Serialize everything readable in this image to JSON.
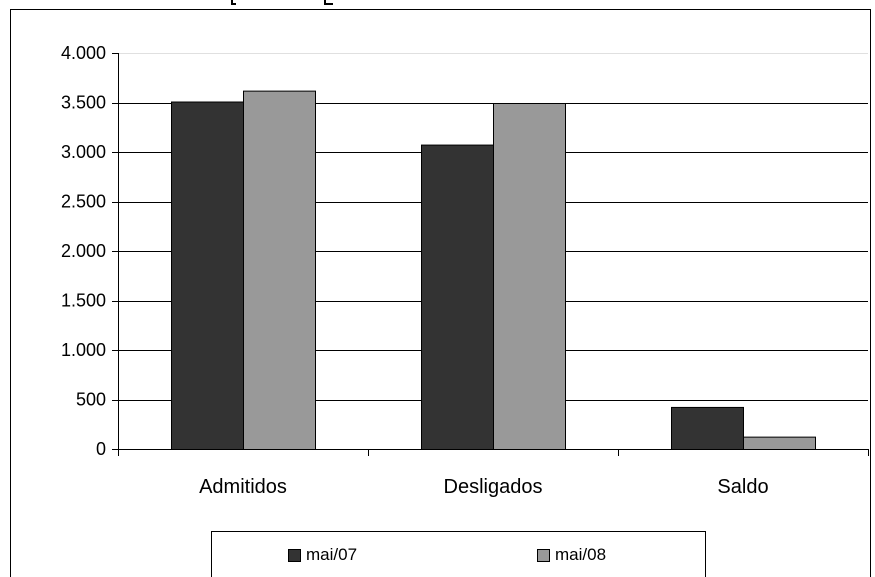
{
  "chart_data": {
    "type": "bar",
    "categories": [
      "Admitidos",
      "Desligados",
      "Saldo"
    ],
    "series": [
      {
        "name": "mai/07",
        "values": [
          3510,
          3075,
          425
        ],
        "color": "#333333"
      },
      {
        "name": "mai/08",
        "values": [
          3620,
          3495,
          125
        ],
        "color": "#999999"
      }
    ],
    "ylim": [
      0,
      4000
    ],
    "ytick_values": [
      0,
      500,
      1000,
      1500,
      2000,
      2500,
      3000,
      3500,
      4000
    ],
    "ytick_labels": [
      "0",
      "500",
      "1.000",
      "1.500",
      "2.000",
      "2.500",
      "3.000",
      "3.500",
      "4.000"
    ],
    "grid": true,
    "legend_position": "bottom"
  }
}
